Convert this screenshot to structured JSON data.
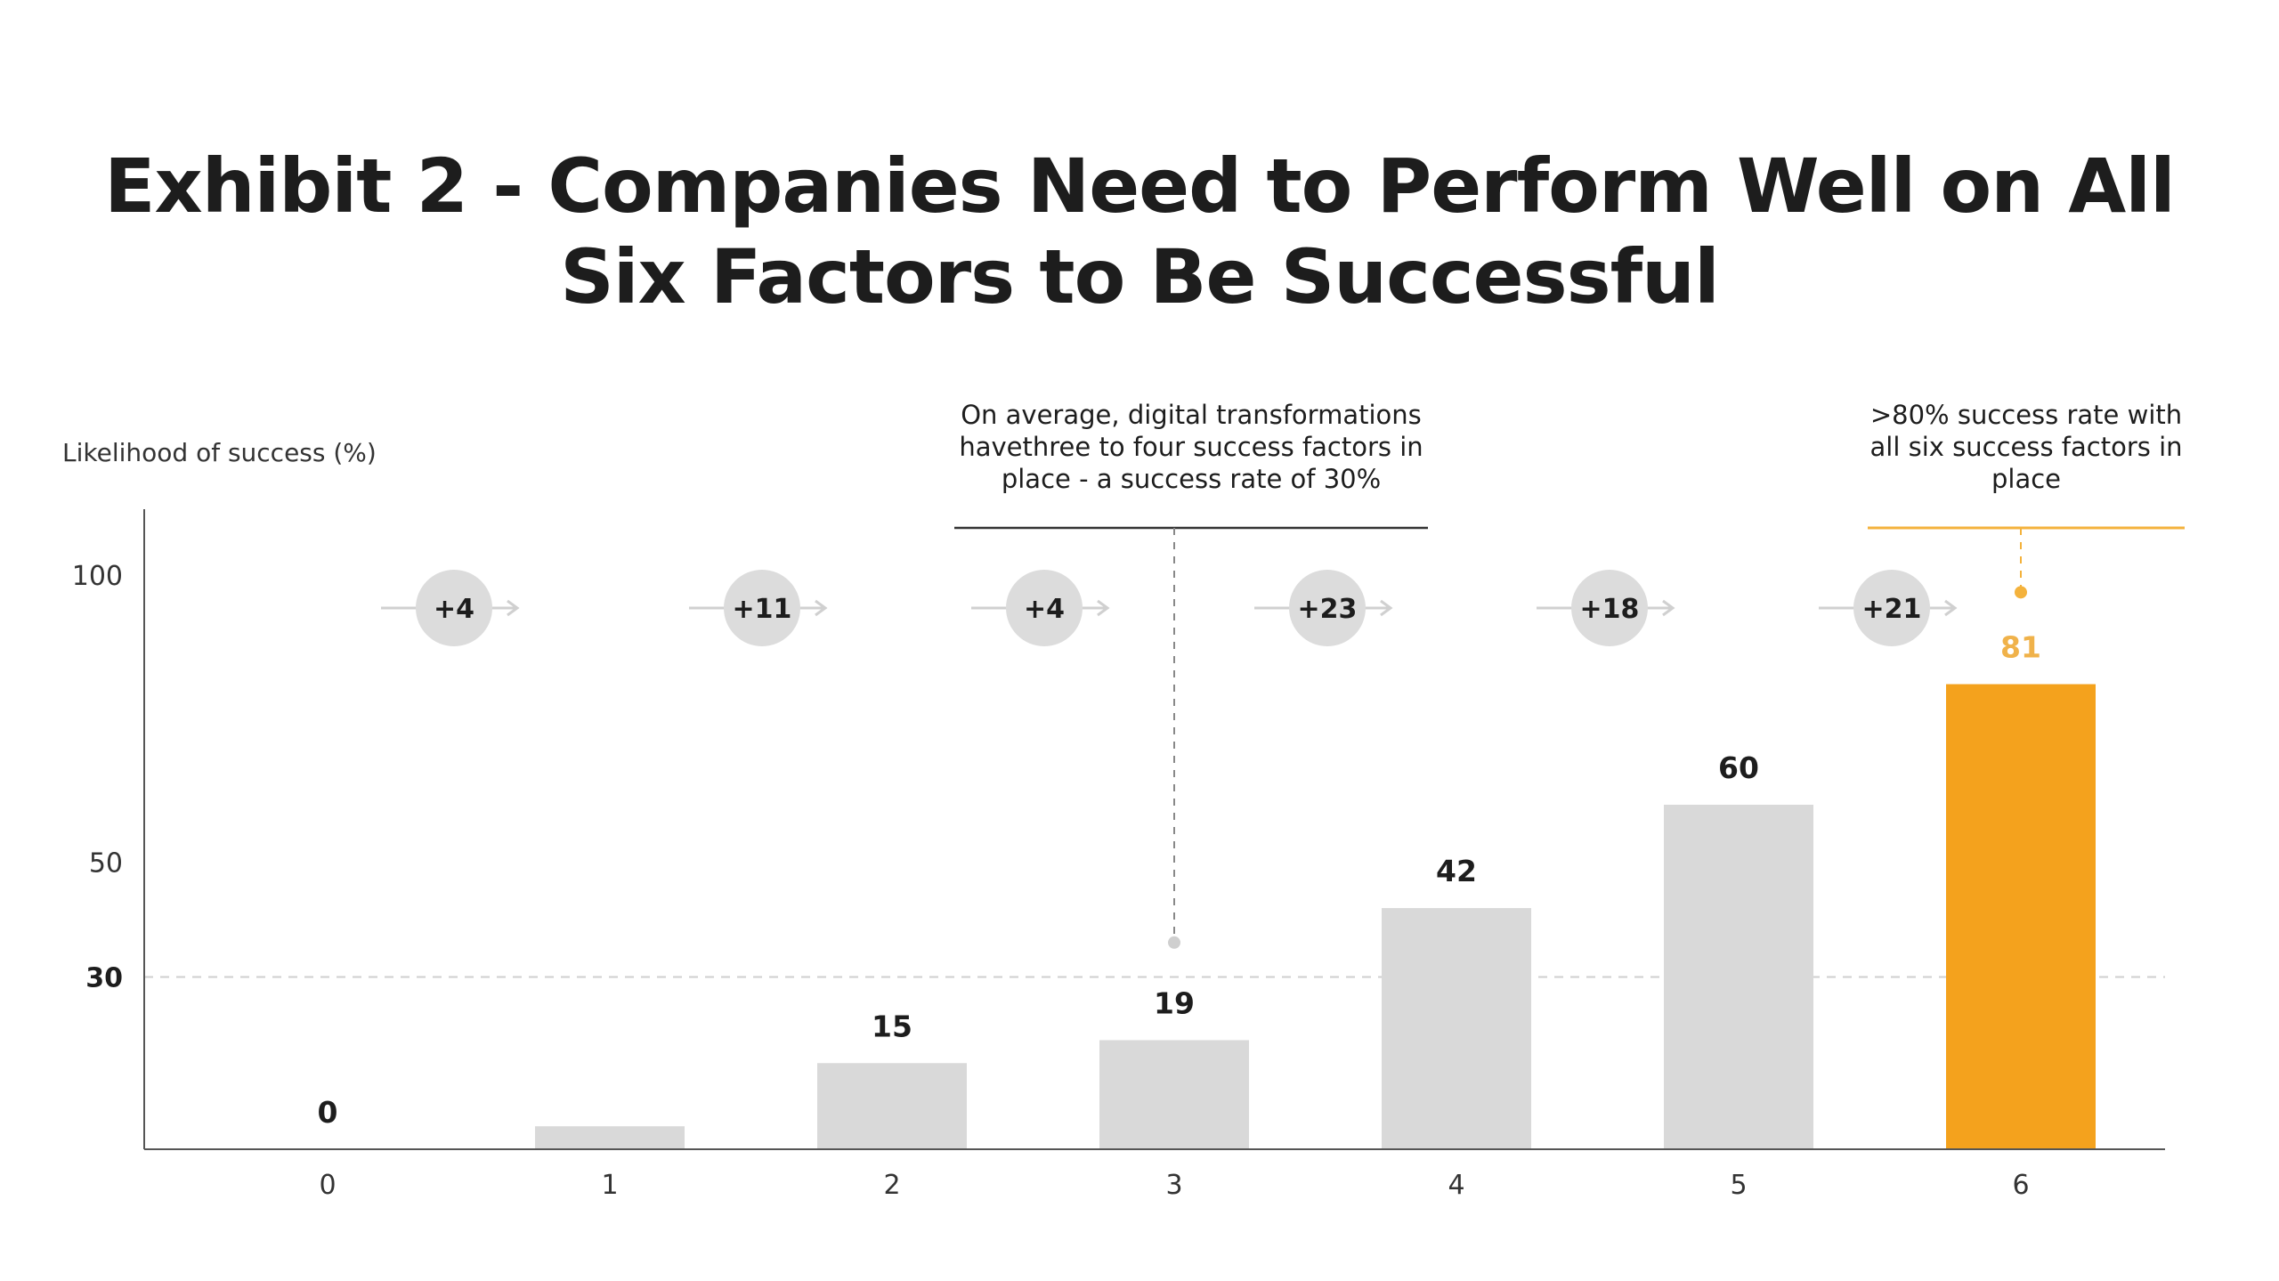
{
  "title_lines": [
    "Exhibit 2 - Companies Need to Perform Well on All",
    "Six Factors to Be Successful"
  ],
  "chart_data": {
    "type": "bar",
    "title": "Exhibit 2 - Companies Need to Perform Well on All Six Factors to Be Successful",
    "ylabel": "Likelihood of success (%)",
    "xlabel": "",
    "categories": [
      "0",
      "1",
      "2",
      "3",
      "4",
      "5",
      "6"
    ],
    "values": [
      0,
      4,
      15,
      19,
      42,
      60,
      81
    ],
    "value_labels": [
      "0",
      "",
      "15",
      "19",
      "42",
      "60",
      "81"
    ],
    "increments": [
      "+4",
      "+11",
      "+4",
      "+23",
      "+18",
      "+21"
    ],
    "ylim": [
      0,
      111
    ],
    "yticks": [
      {
        "value": 30,
        "label": "30",
        "bold": true
      },
      {
        "value": 50,
        "label": "50",
        "bold": false
      },
      {
        "value": 100,
        "label": "100",
        "bold": false
      }
    ],
    "reference_line": {
      "value": 30
    },
    "highlight_index": 6,
    "colors": {
      "bar": "#d9d9d9",
      "highlight": "#f4a21d",
      "highlight_label": "#f0b24a",
      "bubble": "#dcdcdc",
      "axis": "#555555"
    },
    "grid": false,
    "annotations": [
      {
        "category_index": 3,
        "lines": [
          "On average, digital transformations",
          "havethree to four success factors in",
          "place - a success rate of 30%"
        ],
        "color": "#333333",
        "target_value": 36
      },
      {
        "category_index": 6,
        "lines": [
          ">80% success rate with",
          "all six success factors in",
          "place"
        ],
        "color": "#f4b23c",
        "target_value": 97
      }
    ]
  }
}
